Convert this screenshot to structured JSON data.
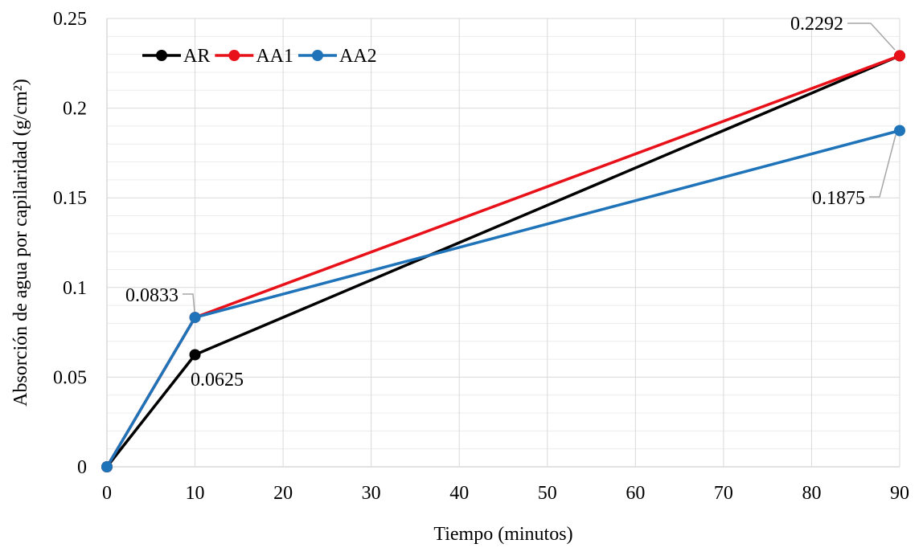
{
  "chart_data": {
    "type": "line",
    "title": "",
    "xlabel": "Tiempo (minutos)",
    "ylabel": "Absorción de agua por capilaridad (g/cm²)",
    "x_ticks": [
      "0",
      "10",
      "20",
      "30",
      "40",
      "50",
      "60",
      "70",
      "80",
      "90"
    ],
    "y_ticks": [
      "0",
      "0.05",
      "0.1",
      "0.15",
      "0.2",
      "0.25"
    ],
    "xlim": [
      0,
      90
    ],
    "ylim": [
      0,
      0.25
    ],
    "grid": true,
    "legend_position": "top-left",
    "series": [
      {
        "name": "AR",
        "color": "#000000",
        "x": [
          0,
          10,
          90
        ],
        "y": [
          0,
          0.0625,
          0.2292
        ]
      },
      {
        "name": "AA1",
        "color": "#e8111a",
        "x": [
          0,
          10,
          90
        ],
        "y": [
          0,
          0.0833,
          0.2292
        ]
      },
      {
        "name": "AA2",
        "color": "#1f73b8",
        "x": [
          0,
          10,
          90
        ],
        "y": [
          0,
          0.0833,
          0.1875
        ]
      }
    ],
    "annotations": [
      {
        "text": "0.2292",
        "x": 90,
        "y": 0.2292
      },
      {
        "text": "0.1875",
        "x": 90,
        "y": 0.1875
      },
      {
        "text": "0.0833",
        "x": 10,
        "y": 0.0833
      },
      {
        "text": "0.0625",
        "x": 10,
        "y": 0.0625
      }
    ]
  }
}
